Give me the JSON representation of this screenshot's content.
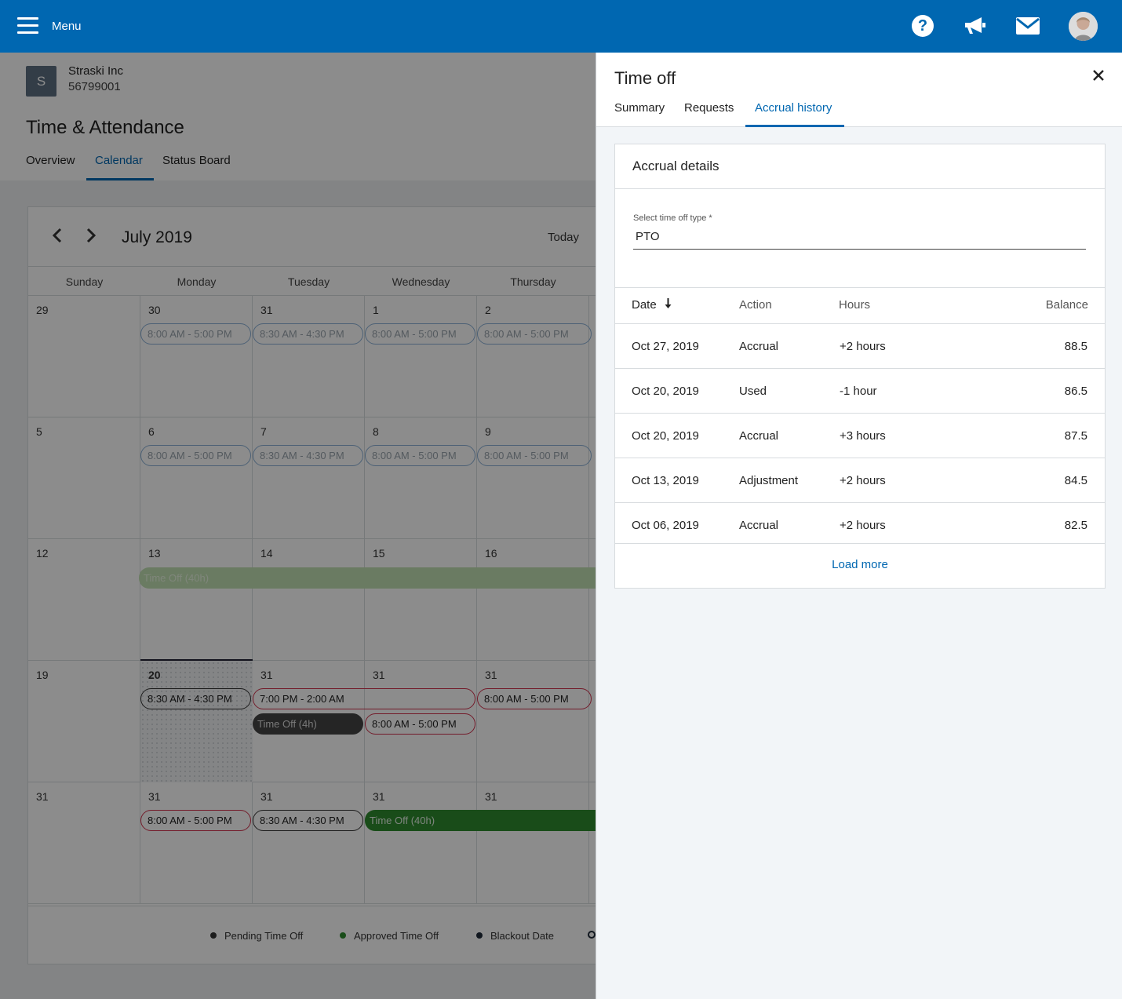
{
  "topbar": {
    "menu_label": "Menu",
    "icons": [
      "hamburger-icon",
      "help-icon",
      "megaphone-icon",
      "mail-icon",
      "avatar"
    ],
    "brand_color": "#0067b1"
  },
  "company": {
    "initial": "S",
    "name": "Straski Inc",
    "id": "56799001"
  },
  "page": {
    "title": "Time & Attendance",
    "tabs": [
      "Overview",
      "Calendar",
      "Status Board"
    ],
    "active_tab": "Calendar"
  },
  "calendar": {
    "month": "July 2019",
    "today_label": "Today",
    "days_of_week": [
      "Sunday",
      "Monday",
      "Tuesday",
      "Wednesday",
      "Thursday"
    ],
    "weeks": [
      [
        "29",
        "30",
        "31",
        "1",
        "2"
      ],
      [
        "5",
        "6",
        "7",
        "8",
        "9"
      ],
      [
        "12",
        "13",
        "14",
        "15",
        "16"
      ],
      [
        "19",
        "20",
        "31",
        "31",
        "31"
      ],
      [
        "31",
        "31",
        "31",
        "31",
        "31"
      ]
    ],
    "shifts": {
      "w1_mon": "8:00 AM - 5:00 PM",
      "w1_tue": "8:30 AM - 4:30 PM",
      "w1_wed": "8:00 AM - 5:00 PM",
      "w1_thu": "8:00 AM - 5:00 PM",
      "w2_mon": "8:00 AM - 5:00 PM",
      "w2_tue": "8:30 AM - 4:30 PM",
      "w2_wed": "8:00 AM - 5:00 PM",
      "w2_thu": "8:00 AM - 5:00 PM",
      "w3_timeoff": "Time Off (40h)",
      "w4_mon": "8:30 AM - 4:30 PM",
      "w4_tue": "7:00 PM - 2:00 AM",
      "w4_tue_timeoff": "Time Off (4h)",
      "w4_wed": "8:00 AM - 5:00 PM",
      "w4_thu": "8:00 AM - 5:00 PM",
      "w5_mon": "8:00 AM - 5:00 PM",
      "w5_tue": "8:30 AM - 4:30 PM",
      "w5_timeoff": "Time Off (40h)"
    },
    "legend": [
      "Pending Time Off",
      "Approved Time Off",
      "Blackout Date"
    ]
  },
  "drawer": {
    "title": "Time off",
    "tabs": [
      "Summary",
      "Requests",
      "Accrual history"
    ],
    "active_tab": "Accrual history",
    "card_title": "Accrual details",
    "select_label": "Select time off type *",
    "select_value": "PTO",
    "columns": [
      "Date",
      "Action",
      "Hours",
      "Balance"
    ],
    "rows": [
      {
        "date": "Oct 27, 2019",
        "action": "Accrual",
        "hours": "+2 hours",
        "balance": "88.5"
      },
      {
        "date": "Oct 20, 2019",
        "action": "Used",
        "hours": "-1 hour",
        "balance": "86.5"
      },
      {
        "date": "Oct 20, 2019",
        "action": "Accrual",
        "hours": "+3 hours",
        "balance": "87.5"
      },
      {
        "date": "Oct 13, 2019",
        "action": "Adjustment",
        "hours": "+2 hours",
        "balance": "84.5"
      },
      {
        "date": "Oct 06, 2019",
        "action": "Accrual",
        "hours": "+2 hours",
        "balance": "82.5"
      }
    ],
    "load_more": "Load more"
  }
}
